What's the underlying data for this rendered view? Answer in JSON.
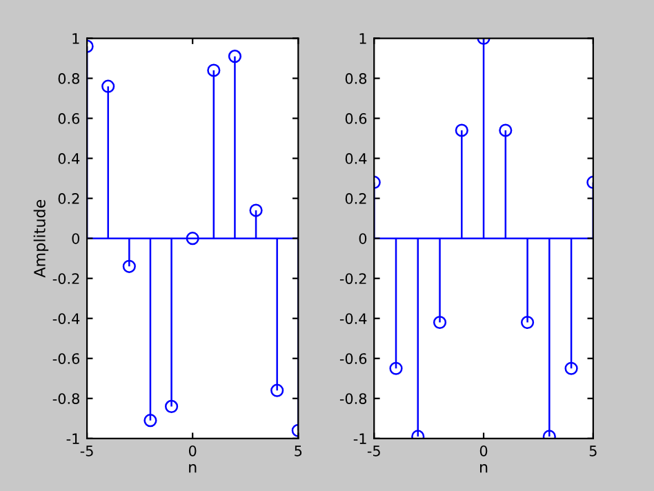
{
  "chart_data": [
    {
      "type": "lollipop",
      "xlabel": "n",
      "ylabel": "Amplitude",
      "x": [
        -5,
        -4,
        -3,
        -2,
        -1,
        0,
        1,
        2,
        3,
        4,
        5
      ],
      "series": [
        {
          "color": "#0000ff",
          "values": [
            0.96,
            0.76,
            -0.14,
            -0.91,
            -0.84,
            0,
            0.84,
            0.91,
            0.14,
            -0.76,
            -0.96
          ]
        }
      ],
      "xlim": [
        -5,
        5
      ],
      "xticks": [
        -5,
        0,
        5
      ],
      "ylim": [
        -1,
        1
      ],
      "yticks": [
        -1,
        -0.8,
        -0.6,
        -0.4,
        -0.2,
        0,
        0.2,
        0.4,
        0.6,
        0.8,
        1
      ],
      "marker": "circle",
      "grid": false,
      "ref_lines": [
        {
          "axis": "y",
          "value": 0,
          "color": "#0000ff"
        }
      ]
    },
    {
      "type": "lollipop",
      "xlabel": "n",
      "x": [
        -5,
        -4,
        -3,
        -2,
        -1,
        0,
        1,
        2,
        3,
        4,
        5
      ],
      "series": [
        {
          "color": "#0000ff",
          "values": [
            0.28,
            -0.65,
            -0.99,
            -0.42,
            0.54,
            1,
            0.54,
            -0.42,
            -0.99,
            -0.65,
            0.28
          ]
        }
      ],
      "xlim": [
        -5,
        5
      ],
      "xticks": [
        -5,
        0,
        5
      ],
      "ylim": [
        -1,
        1
      ],
      "yticks": [
        -1,
        -0.8,
        -0.6,
        -0.4,
        -0.2,
        0,
        0.2,
        0.4,
        0.6,
        0.8,
        1
      ],
      "marker": "circle",
      "grid": false,
      "ref_lines": [
        {
          "axis": "y",
          "value": 0,
          "color": "#0000ff"
        }
      ]
    }
  ]
}
